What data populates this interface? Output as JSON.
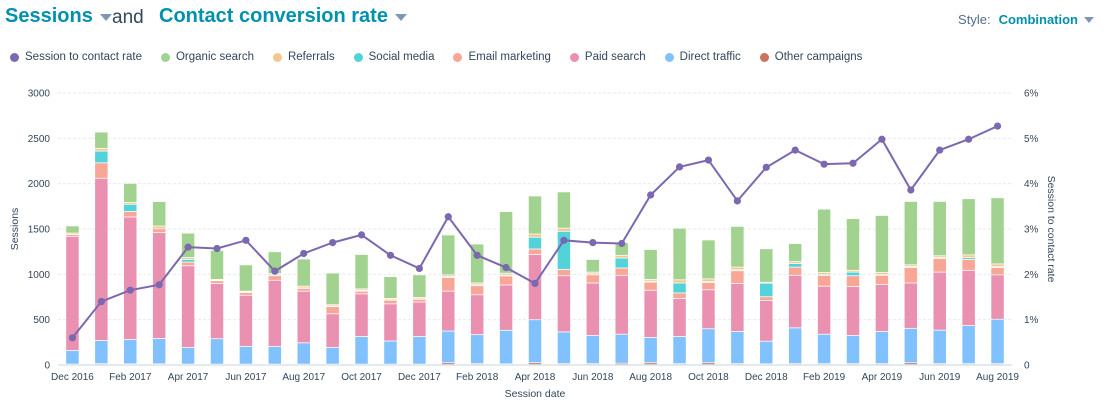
{
  "header": {
    "metric1": "Sessions",
    "and": "and",
    "metric2": "Contact conversion rate",
    "style_label": "Style:",
    "style_value": "Combination"
  },
  "legend": [
    {
      "label": "Session to contact rate",
      "color": "#7b68b0",
      "icon": "circle"
    },
    {
      "label": "Organic search",
      "color": "#a2d28f",
      "icon": "circle"
    },
    {
      "label": "Referrals",
      "color": "#f5c78e",
      "icon": "circle"
    },
    {
      "label": "Social media",
      "color": "#51d3d9",
      "icon": "circle"
    },
    {
      "label": "Email marketing",
      "color": "#f8a695",
      "icon": "circle"
    },
    {
      "label": "Paid search",
      "color": "#ea90b1",
      "icon": "circle"
    },
    {
      "label": "Direct traffic",
      "color": "#81c1fd",
      "icon": "circle"
    },
    {
      "label": "Other campaigns",
      "color": "#c87461",
      "icon": "circle"
    }
  ],
  "chart_data": {
    "type": "bar",
    "stacked": true,
    "xlabel": "Session date",
    "ylabel": "Sessions",
    "y2label": "Session to contact rate",
    "ylim": [
      0,
      3000
    ],
    "y2lim": [
      0,
      6
    ],
    "yticks": [
      "0",
      "500",
      "1000",
      "1500",
      "2000",
      "2500",
      "3000"
    ],
    "y2ticks": [
      "0",
      "1%",
      "2%",
      "3%",
      "4%",
      "5%",
      "6%"
    ],
    "xtick_labels": [
      "Dec 2016",
      "Feb 2017",
      "Apr 2017",
      "Jun 2017",
      "Aug 2017",
      "Oct 2017",
      "Dec 2017",
      "Feb 2018",
      "Apr 2018",
      "Jun 2018",
      "Aug 2018",
      "Oct 2018",
      "Dec 2018",
      "Feb 2019",
      "Apr 2019",
      "Jun 2019",
      "Aug 2019"
    ],
    "grid": true,
    "legend_position": "top-left",
    "categories": [
      "Dec 2016",
      "Jan 2017",
      "Feb 2017",
      "Mar 2017",
      "Apr 2017",
      "May 2017",
      "Jun 2017",
      "Jul 2017",
      "Aug 2017",
      "Sep 2017",
      "Oct 2017",
      "Nov 2017",
      "Dec 2017",
      "Jan 2018",
      "Feb 2018",
      "Mar 2018",
      "Apr 2018",
      "May 2018",
      "Jun 2018",
      "Jul 2018",
      "Aug 2018",
      "Sep 2018",
      "Oct 2018",
      "Nov 2018",
      "Dec 2018",
      "Jan 2019",
      "Feb 2019",
      "Mar 2019",
      "Apr 2019",
      "May 2019",
      "Jun 2019",
      "Jul 2019",
      "Aug 2019"
    ],
    "series": [
      {
        "name": "Other campaigns",
        "color": "#c87461",
        "values": [
          5,
          10,
          8,
          8,
          5,
          5,
          5,
          5,
          5,
          5,
          5,
          5,
          5,
          20,
          10,
          8,
          20,
          10,
          10,
          15,
          20,
          10,
          20,
          10,
          8,
          10,
          10,
          10,
          10,
          20,
          10,
          10,
          10
        ]
      },
      {
        "name": "Direct traffic",
        "color": "#81c1fd",
        "values": [
          150,
          255,
          270,
          280,
          185,
          280,
          195,
          195,
          235,
          185,
          305,
          255,
          305,
          350,
          320,
          370,
          475,
          350,
          310,
          320,
          280,
          300,
          375,
          355,
          250,
          395,
          325,
          310,
          355,
          380,
          370,
          420,
          490
        ]
      },
      {
        "name": "Paid search",
        "color": "#ea90b1",
        "values": [
          1260,
          1790,
          1350,
          1170,
          900,
          610,
          565,
          730,
          570,
          370,
          470,
          410,
          380,
          440,
          440,
          500,
          720,
          620,
          580,
          650,
          520,
          420,
          430,
          530,
          450,
          580,
          530,
          540,
          520,
          500,
          640,
          610,
          490
        ]
      },
      {
        "name": "Email marketing",
        "color": "#f8a695",
        "values": [
          20,
          170,
          60,
          40,
          40,
          30,
          30,
          50,
          30,
          80,
          30,
          40,
          30,
          150,
          100,
          100,
          60,
          70,
          90,
          80,
          90,
          60,
          80,
          140,
          40,
          90,
          120,
          120,
          100,
          170,
          150,
          120,
          80
        ]
      },
      {
        "name": "Social media",
        "color": "#51d3d9",
        "values": [
          0,
          130,
          80,
          0,
          30,
          5,
          5,
          10,
          5,
          5,
          10,
          5,
          5,
          10,
          10,
          10,
          130,
          420,
          10,
          110,
          10,
          110,
          10,
          10,
          150,
          40,
          10,
          40,
          10,
          10,
          10,
          20,
          10
        ]
      },
      {
        "name": "Referrals",
        "color": "#f5c78e",
        "values": [
          15,
          30,
          20,
          30,
          20,
          10,
          10,
          15,
          20,
          15,
          15,
          15,
          15,
          20,
          20,
          20,
          35,
          35,
          20,
          30,
          20,
          35,
          30,
          30,
          10,
          20,
          20,
          20,
          20,
          20,
          20,
          30,
          30
        ]
      },
      {
        "name": "Organic search",
        "color": "#a2d28f",
        "values": [
          80,
          180,
          210,
          270,
          270,
          320,
          290,
          240,
          300,
          350,
          380,
          240,
          250,
          440,
          430,
          680,
          420,
          400,
          140,
          140,
          330,
          570,
          430,
          450,
          370,
          200,
          700,
          570,
          630,
          700,
          600,
          620,
          730
        ]
      }
    ],
    "line": {
      "name": "Session to contact rate",
      "color": "#7b68b0",
      "values": [
        0.6,
        1.4,
        1.65,
        1.77,
        2.6,
        2.57,
        2.75,
        2.07,
        2.46,
        2.7,
        2.87,
        2.42,
        2.13,
        3.27,
        2.42,
        2.15,
        1.8,
        2.75,
        2.7,
        2.68,
        3.75,
        4.37,
        4.52,
        3.62,
        4.36,
        4.74,
        4.43,
        4.45,
        4.98,
        3.86,
        4.74,
        4.98,
        5.27
      ]
    }
  }
}
